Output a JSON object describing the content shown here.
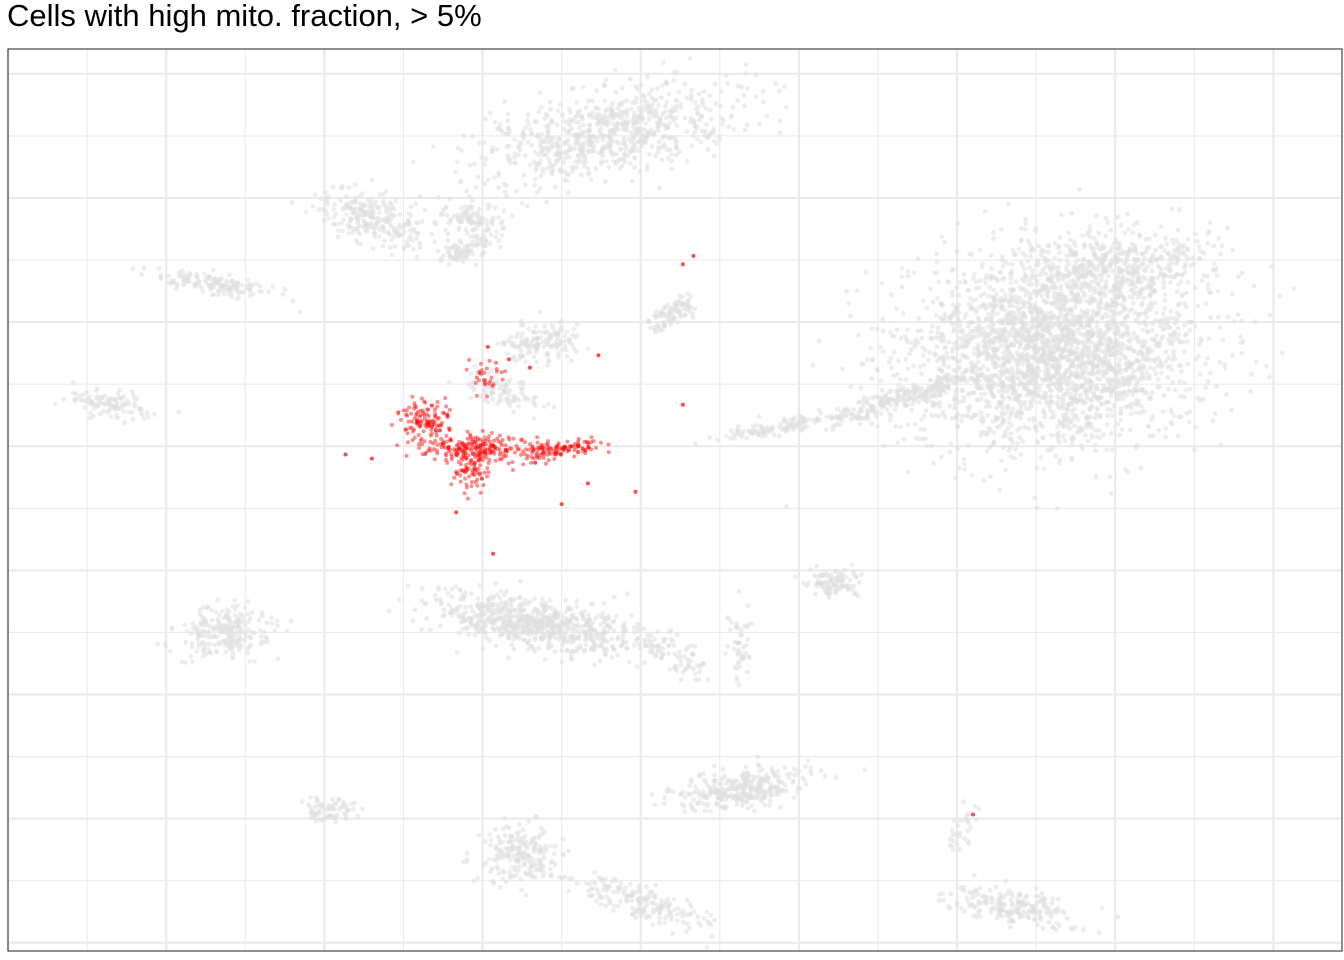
{
  "chart_data": {
    "type": "scatter",
    "title": "Cells with high mito. fraction, > 5%",
    "xlabel": "",
    "ylabel": "",
    "axis_text": "none",
    "grid": true,
    "legend": "none",
    "xlim": [
      -12.5,
      12.8
    ],
    "ylim": [
      -12.2,
      9.6
    ],
    "colors": {
      "background_cells": "#dedede",
      "high_mito_cells": "#ff0000",
      "grid": "#ebebeb",
      "panel_border": "#333333"
    },
    "series": [
      {
        "role": "background",
        "clusters": [
          {
            "center": [
              7.3,
              2.3
            ],
            "spread": [
              2.5,
              2.1
            ],
            "angle": 0.1,
            "n": 2600
          },
          {
            "center": [
              8.6,
              4.4
            ],
            "spread": [
              1.6,
              0.8
            ],
            "angle": 0.0,
            "n": 400
          },
          {
            "center": [
              4.3,
              1.1
            ],
            "spread": [
              1.3,
              0.25
            ],
            "angle": 0.35,
            "n": 220
          },
          {
            "center": [
              2.1,
              0.45
            ],
            "spread": [
              1.0,
              0.14
            ],
            "angle": 0.2,
            "n": 100
          },
          {
            "center": [
              3.2,
              -3.3
            ],
            "spread": [
              0.5,
              0.3
            ],
            "angle": 0.0,
            "n": 100
          },
          {
            "center": [
              -1.1,
              7.6
            ],
            "spread": [
              2.4,
              0.85
            ],
            "angle": 0.3,
            "n": 750
          },
          {
            "center": [
              -5.6,
              5.5
            ],
            "spread": [
              1.0,
              0.5
            ],
            "angle": -0.4,
            "n": 240
          },
          {
            "center": [
              -3.7,
              5.5
            ],
            "spread": [
              0.6,
              0.4
            ],
            "angle": 0.0,
            "n": 100
          },
          {
            "center": [
              -3.8,
              4.75
            ],
            "spread": [
              0.5,
              0.25
            ],
            "angle": 0.5,
            "n": 80
          },
          {
            "center": [
              -8.6,
              3.9
            ],
            "spread": [
              1.0,
              0.22
            ],
            "angle": -0.2,
            "n": 140
          },
          {
            "center": [
              -10.5,
              1.0
            ],
            "spread": [
              0.8,
              0.3
            ],
            "angle": -0.15,
            "n": 100
          },
          {
            "center": [
              -2.4,
              2.5
            ],
            "spread": [
              0.7,
              0.45
            ],
            "angle": 0.1,
            "n": 150
          },
          {
            "center": [
              -3.1,
              1.3
            ],
            "spread": [
              0.7,
              0.3
            ],
            "angle": -0.5,
            "n": 90
          },
          {
            "center": [
              0.1,
              3.2
            ],
            "spread": [
              0.5,
              0.25
            ],
            "angle": 0.7,
            "n": 90
          },
          {
            "center": [
              -2.5,
              -4.3
            ],
            "spread": [
              1.9,
              0.55
            ],
            "angle": -0.2,
            "n": 700
          },
          {
            "center": [
              -8.4,
              -4.5
            ],
            "spread": [
              0.8,
              0.6
            ],
            "angle": 0.3,
            "n": 220
          },
          {
            "center": [
              1.4,
              -8.3
            ],
            "spread": [
              1.2,
              0.4
            ],
            "angle": 0.2,
            "n": 300
          },
          {
            "center": [
              -2.8,
              -9.9
            ],
            "spread": [
              0.7,
              0.6
            ],
            "angle": -0.4,
            "n": 200
          },
          {
            "center": [
              -0.5,
              -11.0
            ],
            "spread": [
              1.3,
              0.35
            ],
            "angle": -0.4,
            "n": 180
          },
          {
            "center": [
              6.5,
              -11.1
            ],
            "spread": [
              1.2,
              0.35
            ],
            "angle": -0.2,
            "n": 200
          },
          {
            "center": [
              -6.4,
              -8.8
            ],
            "spread": [
              0.5,
              0.25
            ],
            "angle": 0.0,
            "n": 70
          },
          {
            "center": [
              0.1,
              -5.0
            ],
            "spread": [
              0.8,
              0.3
            ],
            "angle": -0.7,
            "n": 70
          },
          {
            "center": [
              1.4,
              -4.8
            ],
            "spread": [
              0.2,
              0.8
            ],
            "angle": 0.0,
            "n": 50
          },
          {
            "center": [
              5.6,
              -9.3
            ],
            "spread": [
              0.2,
              0.6
            ],
            "angle": -0.3,
            "n": 30
          }
        ]
      },
      {
        "role": "high_mito",
        "clusters": [
          {
            "center": [
              -4.6,
              0.6
            ],
            "spread": [
              0.45,
              0.45
            ],
            "angle": 0.0,
            "n": 120
          },
          {
            "center": [
              -3.6,
              -0.05
            ],
            "spread": [
              1.0,
              0.3
            ],
            "angle": 0.05,
            "n": 220
          },
          {
            "center": [
              -2.1,
              -0.1
            ],
            "spread": [
              0.9,
              0.18
            ],
            "angle": 0.18,
            "n": 110
          },
          {
            "center": [
              -3.7,
              -0.7
            ],
            "spread": [
              0.35,
              0.4
            ],
            "angle": 0.0,
            "n": 60
          },
          {
            "center": [
              -3.4,
              1.6
            ],
            "spread": [
              0.35,
              0.4
            ],
            "angle": -0.6,
            "n": 30
          }
        ],
        "outliers": [
          [
            -6.1,
            -0.2
          ],
          [
            -5.6,
            -0.3
          ],
          [
            -2.0,
            -1.4
          ],
          [
            -3.3,
            -2.6
          ],
          [
            -1.5,
            -0.9
          ],
          [
            -3.0,
            2.1
          ],
          [
            -2.6,
            1.9
          ],
          [
            -3.4,
            2.4
          ],
          [
            -1.3,
            2.2
          ],
          [
            -0.6,
            -1.1
          ],
          [
            -2.5,
            -0.4
          ],
          [
            0.3,
            4.4
          ],
          [
            0.5,
            4.6
          ],
          [
            0.3,
            1.0
          ],
          [
            5.8,
            -8.9
          ],
          [
            -4.0,
            -1.6
          ]
        ]
      }
    ]
  }
}
